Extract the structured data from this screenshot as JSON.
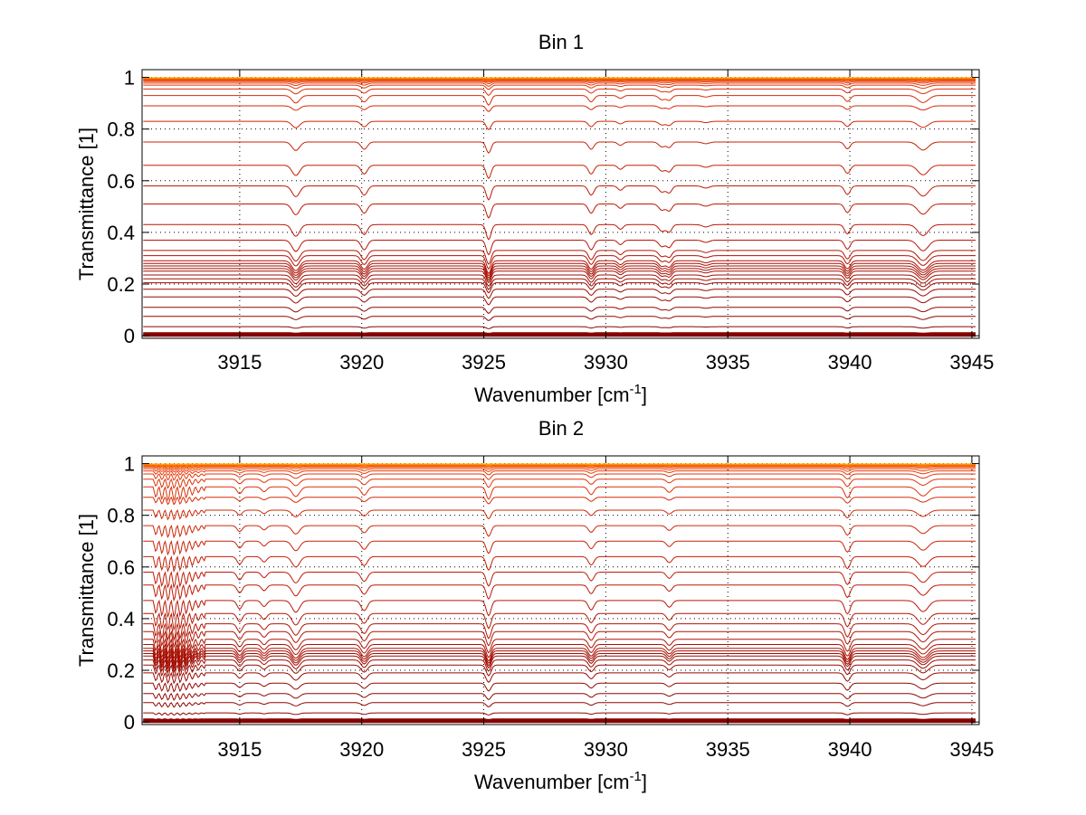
{
  "chart_data": [
    {
      "type": "line",
      "title": "Bin 1",
      "xlabel": "Wavenumber [cm",
      "xlabel_sup": "-1",
      "xlabel_suffix": "]",
      "ylabel": "Transmittance [1]",
      "xlim": [
        3911,
        3945.3
      ],
      "ylim": [
        -0.01,
        1.03
      ],
      "xticks": [
        "3915",
        "3920",
        "3925",
        "3930",
        "3935",
        "3940",
        "3945"
      ],
      "yticks": [
        "0",
        "0.2",
        "0.4",
        "0.6",
        "0.8",
        "1"
      ],
      "xtick_values": [
        3915,
        3920,
        3925,
        3930,
        3935,
        3940,
        3945
      ],
      "ytick_values": [
        0,
        0.2,
        0.4,
        0.6,
        0.8,
        1
      ],
      "grid": true,
      "line_count": 40,
      "baselines": [
        0.0,
        0.003,
        0.006,
        0.01,
        0.035,
        0.075,
        0.11,
        0.15,
        0.18,
        0.205,
        0.22,
        0.235,
        0.25,
        0.26,
        0.27,
        0.28,
        0.29,
        0.31,
        0.33,
        0.37,
        0.43,
        0.51,
        0.58,
        0.66,
        0.75,
        0.83,
        0.89,
        0.93,
        0.955,
        0.97,
        0.978,
        0.984,
        0.988,
        0.991,
        0.993,
        0.995,
        0.996,
        0.997,
        0.998,
        0.999
      ],
      "absorption_lines": [
        {
          "center": 3917.3,
          "depth": 0.35,
          "width": 0.22
        },
        {
          "center": 3920.1,
          "depth": 0.3,
          "width": 0.18
        },
        {
          "center": 3925.2,
          "depth": 0.45,
          "width": 0.14
        },
        {
          "center": 3929.4,
          "depth": 0.3,
          "width": 0.16
        },
        {
          "center": 3930.6,
          "depth": 0.14,
          "width": 0.15
        },
        {
          "center": 3932.3,
          "depth": 0.2,
          "width": 0.18
        },
        {
          "center": 3932.6,
          "depth": 0.22,
          "width": 0.15
        },
        {
          "center": 3934.1,
          "depth": 0.07,
          "width": 0.2
        },
        {
          "center": 3939.9,
          "depth": 0.28,
          "width": 0.16
        },
        {
          "center": 3943.0,
          "depth": 0.33,
          "width": 0.3
        }
      ],
      "oscillation_region": null
    },
    {
      "type": "line",
      "title": "Bin 2",
      "xlabel": "Wavenumber [cm",
      "xlabel_sup": "-1",
      "xlabel_suffix": "]",
      "ylabel": "Transmittance [1]",
      "xlim": [
        3911,
        3945.3
      ],
      "ylim": [
        -0.01,
        1.03
      ],
      "xticks": [
        "3915",
        "3920",
        "3925",
        "3930",
        "3935",
        "3940",
        "3945"
      ],
      "yticks": [
        "0",
        "0.2",
        "0.4",
        "0.6",
        "0.8",
        "1"
      ],
      "xtick_values": [
        3915,
        3920,
        3925,
        3930,
        3935,
        3940,
        3945
      ],
      "ytick_values": [
        0,
        0.2,
        0.4,
        0.6,
        0.8,
        1
      ],
      "grid": true,
      "line_count": 40,
      "baselines": [
        0.0,
        0.003,
        0.006,
        0.01,
        0.035,
        0.075,
        0.11,
        0.15,
        0.19,
        0.22,
        0.24,
        0.255,
        0.265,
        0.275,
        0.285,
        0.3,
        0.32,
        0.35,
        0.38,
        0.42,
        0.47,
        0.53,
        0.58,
        0.64,
        0.7,
        0.76,
        0.82,
        0.87,
        0.91,
        0.94,
        0.96,
        0.972,
        0.98,
        0.986,
        0.99,
        0.993,
        0.995,
        0.997,
        0.998,
        0.999
      ],
      "absorption_lines": [
        {
          "center": 3915.0,
          "depth": 0.25,
          "width": 0.15
        },
        {
          "center": 3916.0,
          "depth": 0.18,
          "width": 0.15
        },
        {
          "center": 3917.3,
          "depth": 0.35,
          "width": 0.22
        },
        {
          "center": 3920.1,
          "depth": 0.3,
          "width": 0.18
        },
        {
          "center": 3925.2,
          "depth": 0.45,
          "width": 0.14
        },
        {
          "center": 3929.4,
          "depth": 0.28,
          "width": 0.16
        },
        {
          "center": 3932.6,
          "depth": 0.2,
          "width": 0.16
        },
        {
          "center": 3939.9,
          "depth": 0.4,
          "width": 0.16
        },
        {
          "center": 3943.0,
          "depth": 0.33,
          "width": 0.3
        }
      ],
      "oscillation_region": {
        "start": 3911.5,
        "end": 3913.6,
        "period": 0.25,
        "depth": 0.5
      }
    }
  ]
}
